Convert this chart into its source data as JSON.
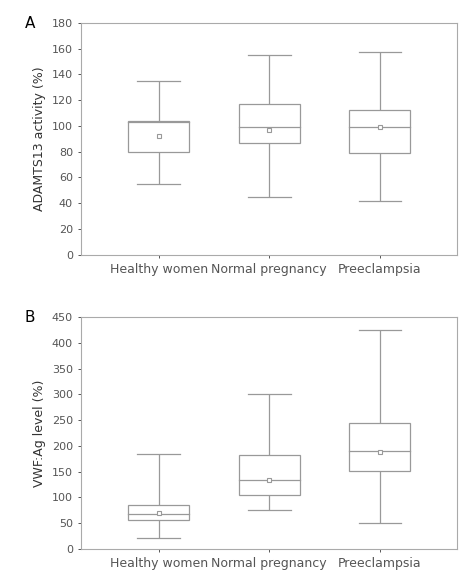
{
  "panel_A": {
    "label": "A",
    "ylabel": "ADAMTS13 activity (%)",
    "ylim": [
      0,
      180
    ],
    "yticks": [
      0,
      20,
      40,
      60,
      80,
      100,
      120,
      140,
      160,
      180
    ],
    "categories": [
      "Healthy women",
      "Normal pregnancy",
      "Preeclampsia"
    ],
    "boxes": [
      {
        "whisker_low": 55,
        "q1": 80,
        "median": 103,
        "q3": 104,
        "whisker_high": 135,
        "mean": 92
      },
      {
        "whisker_low": 45,
        "q1": 87,
        "median": 99,
        "q3": 117,
        "whisker_high": 155,
        "mean": 97
      },
      {
        "whisker_low": 42,
        "q1": 79,
        "median": 99,
        "q3": 112,
        "whisker_high": 157,
        "mean": 99
      }
    ]
  },
  "panel_B": {
    "label": "B",
    "ylabel": "VWF:Ag level (%)",
    "ylim": [
      0,
      450
    ],
    "yticks": [
      0,
      50,
      100,
      150,
      200,
      250,
      300,
      350,
      400,
      450
    ],
    "categories": [
      "Healthy women",
      "Normal pregnancy",
      "Preeclampsia"
    ],
    "boxes": [
      {
        "whisker_low": 22,
        "q1": 57,
        "median": 68,
        "q3": 85,
        "whisker_high": 185,
        "mean": 70
      },
      {
        "whisker_low": 75,
        "q1": 105,
        "median": 133,
        "q3": 182,
        "whisker_high": 300,
        "mean": 133
      },
      {
        "whisker_low": 50,
        "q1": 152,
        "median": 190,
        "q3": 245,
        "whisker_high": 425,
        "mean": 188
      }
    ]
  },
  "box_edge_color": "#999999",
  "median_color": "#999999",
  "whisker_color": "#999999",
  "mean_marker": "s",
  "mean_marker_size": 3.5,
  "mean_marker_color": "white",
  "mean_marker_edge_color": "#999999",
  "box_width": 0.55,
  "figsize": [
    4.74,
    5.87
  ],
  "dpi": 100,
  "spine_color": "#aaaaaa",
  "tick_color": "#555555",
  "label_fontsize": 9,
  "tick_fontsize": 8,
  "panel_label_fontsize": 11
}
